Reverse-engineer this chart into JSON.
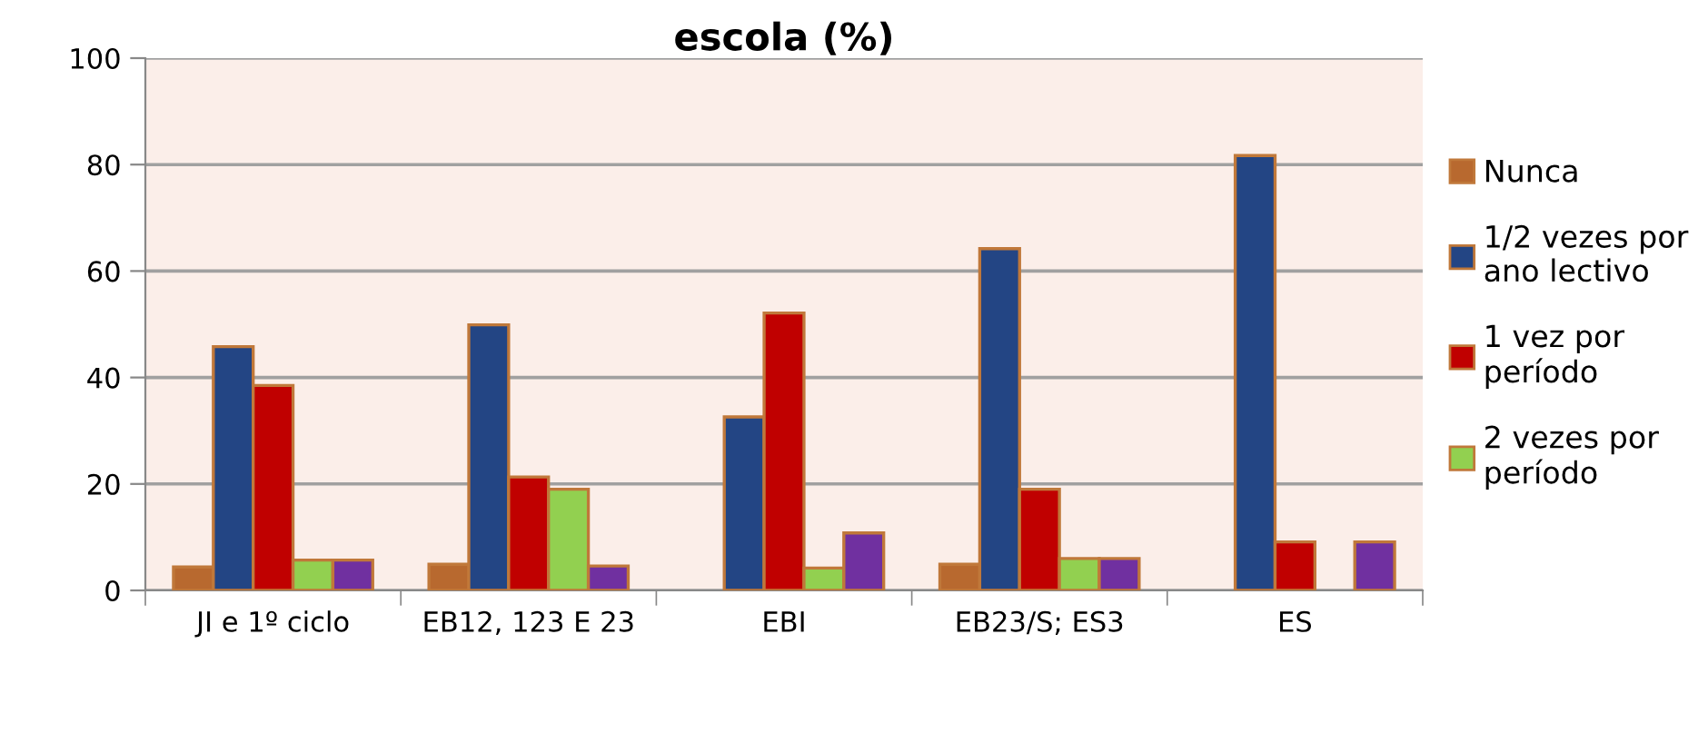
{
  "chart_data": {
    "type": "bar",
    "title": "escola (%)",
    "categories": [
      "JI e 1º ciclo",
      "EB12, 123 E 23",
      "EBI",
      "EB23/S; ES3",
      "ES"
    ],
    "series": [
      {
        "name": "Nunca",
        "color": "#b8692f",
        "values": [
          4.4,
          4.9,
          null,
          4.9,
          null
        ]
      },
      {
        "name": "1/2 vezes por ano lectivo",
        "color": "#234584",
        "values": [
          45.8,
          49.9,
          32.6,
          64.2,
          81.7
        ]
      },
      {
        "name": "1 vez por período",
        "color": "#c00000",
        "values": [
          38.5,
          21.3,
          52.1,
          19.0,
          9.1
        ]
      },
      {
        "name": "2 vezes por período",
        "color": "#92d050",
        "values": [
          5.7,
          19.0,
          4.2,
          6.0,
          null
        ]
      },
      {
        "color": "#7030a0",
        "values": [
          5.7,
          4.6,
          10.8,
          6.0,
          9.1
        ]
      }
    ],
    "ylim": [
      0,
      100
    ],
    "yticks": [
      0,
      20,
      40,
      60,
      80,
      100
    ],
    "grid": "y",
    "legend": "right"
  }
}
